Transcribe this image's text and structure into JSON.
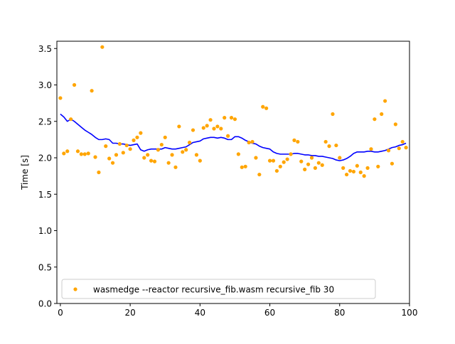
{
  "chart_data": {
    "type": "scatter",
    "title": "",
    "xlabel": "",
    "ylabel": "Time [s]",
    "xlim": [
      -1,
      100
    ],
    "ylim": [
      0,
      3.6
    ],
    "xticks": [
      0,
      20,
      40,
      60,
      80,
      100
    ],
    "yticks": [
      0.0,
      0.5,
      1.0,
      1.5,
      2.0,
      2.5,
      3.0,
      3.5
    ],
    "xtick_labels": [
      "0",
      "20",
      "40",
      "60",
      "80",
      "100"
    ],
    "ytick_labels": [
      "0.0",
      "0.5",
      "1.0",
      "1.5",
      "2.0",
      "2.5",
      "3.0",
      "3.5"
    ],
    "grid": false,
    "legend_position": "lower-left",
    "series": [
      {
        "name": "wasmedge --reactor recursive_fib.wasm recursive_fib 30",
        "kind": "scatter",
        "color": "#ffa500",
        "x": [
          0,
          1,
          2,
          3,
          4,
          5,
          6,
          7,
          8,
          9,
          10,
          11,
          12,
          13,
          14,
          15,
          16,
          17,
          18,
          19,
          20,
          21,
          22,
          23,
          24,
          25,
          26,
          27,
          28,
          29,
          30,
          31,
          32,
          33,
          34,
          35,
          36,
          37,
          38,
          39,
          40,
          41,
          42,
          43,
          44,
          45,
          46,
          47,
          48,
          49,
          50,
          51,
          52,
          53,
          54,
          55,
          56,
          57,
          58,
          59,
          60,
          61,
          62,
          63,
          64,
          65,
          66,
          67,
          68,
          69,
          70,
          71,
          72,
          73,
          74,
          75,
          76,
          77,
          78,
          79,
          80,
          81,
          82,
          83,
          84,
          85,
          86,
          87,
          88,
          89,
          90,
          91,
          92,
          93,
          94,
          95,
          96,
          97,
          98,
          99
        ],
        "y": [
          2.82,
          2.06,
          2.09,
          2.53,
          3.0,
          2.09,
          2.05,
          2.05,
          2.06,
          2.92,
          2.01,
          1.8,
          3.52,
          2.16,
          1.99,
          1.93,
          2.04,
          2.19,
          2.07,
          2.17,
          2.12,
          2.24,
          2.28,
          2.34,
          2.0,
          2.04,
          1.96,
          1.95,
          2.11,
          2.18,
          2.28,
          1.93,
          2.04,
          1.87,
          2.43,
          2.08,
          2.11,
          2.21,
          2.38,
          2.04,
          1.96,
          2.41,
          2.44,
          2.52,
          2.4,
          2.43,
          2.4,
          2.55,
          2.3,
          2.55,
          2.53,
          2.05,
          1.87,
          1.88,
          2.21,
          2.22,
          2.0,
          1.77,
          2.7,
          2.68,
          1.96,
          1.96,
          1.82,
          1.88,
          1.94,
          1.98,
          2.05,
          2.24,
          2.22,
          1.95,
          1.84,
          1.91,
          2.0,
          1.86,
          1.93,
          1.9,
          2.22,
          2.16,
          2.6,
          2.17,
          2.0,
          1.86,
          1.77,
          1.82,
          1.81,
          1.89,
          1.8,
          1.75,
          1.86,
          2.12,
          2.53,
          1.88,
          2.6,
          2.78,
          2.1,
          1.92,
          2.46,
          2.13,
          2.22,
          2.14
        ]
      },
      {
        "kind": "line",
        "color": "#0000ff",
        "x": [
          0,
          1,
          2,
          3,
          4,
          5,
          6,
          7,
          8,
          9,
          10,
          11,
          12,
          13,
          14,
          15,
          16,
          17,
          18,
          19,
          20,
          21,
          22,
          23,
          24,
          25,
          26,
          27,
          28,
          29,
          30,
          31,
          32,
          33,
          34,
          35,
          36,
          37,
          38,
          39,
          40,
          41,
          42,
          43,
          44,
          45,
          46,
          47,
          48,
          49,
          50,
          51,
          52,
          53,
          54,
          55,
          56,
          57,
          58,
          59,
          60,
          61,
          62,
          63,
          64,
          65,
          66,
          67,
          68,
          69,
          70,
          71,
          72,
          73,
          74,
          75,
          76,
          77,
          78,
          79,
          80,
          81,
          82,
          83,
          84,
          85,
          86,
          87,
          88,
          89,
          90,
          91,
          92,
          93,
          94,
          95,
          96,
          97,
          98,
          99
        ],
        "y": [
          2.6,
          2.56,
          2.5,
          2.53,
          2.5,
          2.46,
          2.42,
          2.38,
          2.35,
          2.32,
          2.28,
          2.25,
          2.25,
          2.26,
          2.25,
          2.2,
          2.2,
          2.19,
          2.19,
          2.18,
          2.17,
          2.18,
          2.19,
          2.11,
          2.09,
          2.11,
          2.12,
          2.12,
          2.12,
          2.12,
          2.14,
          2.13,
          2.12,
          2.12,
          2.13,
          2.14,
          2.15,
          2.18,
          2.21,
          2.22,
          2.23,
          2.26,
          2.27,
          2.28,
          2.28,
          2.27,
          2.28,
          2.27,
          2.25,
          2.25,
          2.29,
          2.29,
          2.27,
          2.24,
          2.22,
          2.2,
          2.19,
          2.16,
          2.14,
          2.13,
          2.12,
          2.08,
          2.06,
          2.05,
          2.05,
          2.05,
          2.05,
          2.06,
          2.06,
          2.05,
          2.04,
          2.04,
          2.03,
          2.03,
          2.02,
          2.02,
          2.01,
          2.0,
          1.99,
          1.97,
          1.96,
          1.97,
          1.99,
          2.02,
          2.06,
          2.08,
          2.08,
          2.08,
          2.09,
          2.09,
          2.08,
          2.08,
          2.09,
          2.1,
          2.12,
          2.14,
          2.15,
          2.17,
          2.18,
          2.2
        ]
      }
    ]
  }
}
